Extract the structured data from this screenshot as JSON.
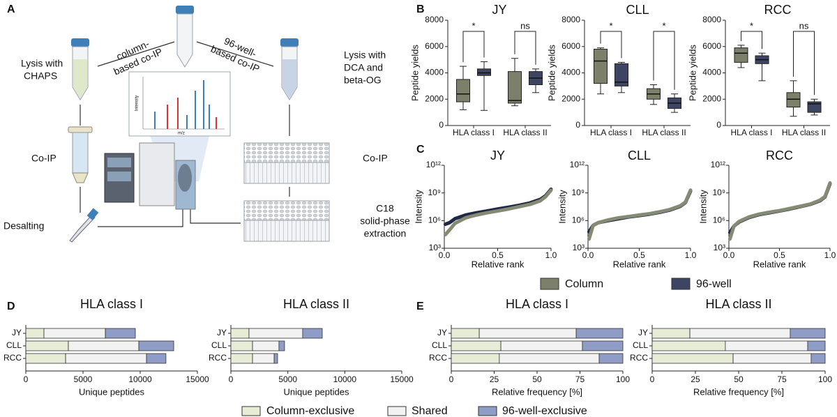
{
  "panel_labels": [
    "A",
    "B",
    "C",
    "D",
    "E"
  ],
  "diagram": {
    "lysis_left": [
      "Lysis with",
      "CHAPS"
    ],
    "column_coip": [
      "column-",
      "based co-IP"
    ],
    "well_coip": [
      "96-well-",
      "based co-IP"
    ],
    "lysis_right": [
      "Lysis with",
      "DCA and",
      "beta-OG"
    ],
    "coip_left": "Co-IP",
    "coip_right": "Co-IP",
    "desalting": "Desalting",
    "spe": [
      "C18",
      "solid-phase",
      "extraction"
    ],
    "spectrum": {
      "xlabel": "m/z",
      "ylabel": "Intensity"
    }
  },
  "chart_data": [
    {
      "type": "box",
      "title": "JY",
      "ylabel": "Peptide yields",
      "categories": [
        "HLA class I",
        "HLA class II"
      ],
      "ylim": [
        0,
        8000
      ],
      "yticks": [
        0,
        2000,
        4000,
        6000,
        8000
      ],
      "annotations": [
        "*",
        "ns"
      ],
      "series": [
        {
          "name": "Column",
          "color": "#7c806b",
          "values": [
            {
              "min": 1200,
              "q1": 1800,
              "median": 2400,
              "q3": 3500,
              "max": 4500
            },
            {
              "min": 1500,
              "q1": 1700,
              "median": 1900,
              "q3": 4100,
              "max": 5100
            }
          ]
        },
        {
          "name": "96-well",
          "color": "#3e4562",
          "values": [
            {
              "min": 1150,
              "q1": 3800,
              "median": 4000,
              "q3": 4300,
              "max": 4850
            },
            {
              "min": 2500,
              "q1": 3100,
              "median": 3600,
              "q3": 4100,
              "max": 4300
            }
          ]
        }
      ]
    },
    {
      "type": "box",
      "title": "CLL",
      "ylabel": "Peptide yields",
      "categories": [
        "HLA class I",
        "HLA class II"
      ],
      "ylim": [
        0,
        8000
      ],
      "yticks": [
        0,
        2000,
        4000,
        6000,
        8000
      ],
      "annotations": [
        "*",
        "*"
      ],
      "series": [
        {
          "name": "Column",
          "color": "#7c806b",
          "values": [
            {
              "min": 2400,
              "q1": 3200,
              "median": 4900,
              "q3": 5800,
              "max": 5900
            },
            {
              "min": 1600,
              "q1": 2000,
              "median": 2400,
              "q3": 2800,
              "max": 3100
            }
          ]
        },
        {
          "name": "96-well",
          "color": "#3e4562",
          "values": [
            {
              "min": 2500,
              "q1": 3000,
              "median": 3300,
              "q3": 4700,
              "max": 4800
            },
            {
              "min": 1000,
              "q1": 1300,
              "median": 1700,
              "q3": 2100,
              "max": 2400
            }
          ]
        }
      ]
    },
    {
      "type": "box",
      "title": "RCC",
      "ylabel": "Peptide yields",
      "categories": [
        "HLA class I",
        "HLA class II"
      ],
      "ylim": [
        0,
        8000
      ],
      "yticks": [
        0,
        2000,
        4000,
        6000,
        8000
      ],
      "annotations": [
        "*",
        "ns"
      ],
      "series": [
        {
          "name": "Column",
          "color": "#7c806b",
          "values": [
            {
              "min": 4400,
              "q1": 4800,
              "median": 5500,
              "q3": 5900,
              "max": 6100
            },
            {
              "min": 700,
              "q1": 1400,
              "median": 2000,
              "q3": 2500,
              "max": 3400
            }
          ]
        },
        {
          "name": "96-well",
          "color": "#3e4562",
          "values": [
            {
              "min": 3400,
              "q1": 4700,
              "median": 5000,
              "q3": 5300,
              "max": 5500
            },
            {
              "min": 800,
              "q1": 1000,
              "median": 1650,
              "q3": 1800,
              "max": 2000
            }
          ]
        }
      ]
    },
    {
      "type": "line",
      "title": "JY",
      "xlabel": "Relative rank",
      "ylabel": "Intensity",
      "log_y": true,
      "x": [
        0.01,
        0.05,
        0.1,
        0.2,
        0.3,
        0.4,
        0.5,
        0.6,
        0.7,
        0.8,
        0.9,
        0.95,
        1.0
      ],
      "xlim": [
        0,
        1
      ],
      "xticks": [
        {
          "value": 0,
          "label": "0.0"
        },
        0.5,
        {
          "value": 1,
          "label": "1.0"
        }
      ],
      "ylim": [
        1000,
        1000000000000
      ],
      "yticks": [
        {
          "value": 1000,
          "label": "10³"
        },
        {
          "value": 1000000,
          "label": "10⁶"
        },
        {
          "value": 1000000000,
          "label": "10⁹"
        },
        {
          "value": 1000000000000,
          "label": "10¹²"
        }
      ],
      "series": [
        {
          "name": "Column",
          "color": "#858a74",
          "values": [
            30000,
            100000,
            500000,
            2000000,
            4000000,
            7000000,
            11000000,
            18000000,
            32000000,
            56000000,
            140000000,
            400000000,
            2000000000
          ]
        },
        {
          "name": "96-well",
          "color": "#1f2845",
          "values": [
            400000,
            600000,
            1600000,
            4000000,
            7000000,
            11000000,
            18000000,
            28000000,
            45000000,
            80000000,
            200000000,
            500000000,
            2500000000
          ]
        }
      ]
    },
    {
      "type": "line",
      "title": "CLL",
      "xlabel": "Relative rank",
      "ylabel": "Intensity",
      "log_y": true,
      "x": [
        0.01,
        0.05,
        0.1,
        0.2,
        0.3,
        0.4,
        0.5,
        0.6,
        0.7,
        0.8,
        0.9,
        0.95,
        1.0
      ],
      "xlim": [
        0,
        1
      ],
      "xticks": [
        {
          "value": 0,
          "label": "0.0"
        },
        0.5,
        {
          "value": 1,
          "label": "1.0"
        }
      ],
      "ylim": [
        1000,
        1000000000000
      ],
      "yticks": [
        {
          "value": 1000,
          "label": "10³"
        },
        {
          "value": 1000000,
          "label": "10⁶"
        },
        {
          "value": 1000000000,
          "label": "10⁹"
        },
        {
          "value": 1000000000000,
          "label": "10¹²"
        }
      ],
      "series": [
        {
          "name": "Column",
          "color": "#858a74",
          "values": [
            10000,
            300000,
            600000,
            1200000,
            2000000,
            2800000,
            4000000,
            5600000,
            9000000,
            16000000,
            40000000,
            100000000,
            2000000000
          ]
        },
        {
          "name": "96-well",
          "color": "#1f2845",
          "values": [
            60000,
            300000,
            600000,
            1000000,
            1600000,
            2500000,
            3500000,
            5000000,
            8000000,
            14000000,
            35000000,
            90000000,
            1600000000
          ]
        }
      ]
    },
    {
      "type": "line",
      "title": "RCC",
      "xlabel": "Relative rank",
      "ylabel": "Intensity",
      "log_y": true,
      "x": [
        0.01,
        0.05,
        0.1,
        0.2,
        0.3,
        0.4,
        0.5,
        0.6,
        0.7,
        0.8,
        0.9,
        0.95,
        1.0
      ],
      "xlim": [
        0,
        1
      ],
      "xticks": [
        {
          "value": 0,
          "label": "0.0"
        },
        0.5,
        {
          "value": 1,
          "label": "1.0"
        }
      ],
      "ylim": [
        1000,
        1000000000000
      ],
      "yticks": [
        {
          "value": 1000,
          "label": "10³"
        },
        {
          "value": 1000000,
          "label": "10⁶"
        },
        {
          "value": 1000000000,
          "label": "10⁹"
        },
        {
          "value": 1000000000000,
          "label": "10¹²"
        }
      ],
      "series": [
        {
          "name": "Column",
          "color": "#858a74",
          "values": [
            10000,
            250000,
            800000,
            2500000,
            5000000,
            8000000,
            12000000,
            20000000,
            35000000,
            60000000,
            160000000,
            400000000,
            12000000000
          ]
        },
        {
          "name": "96-well",
          "color": "#1f2845",
          "values": [
            50000,
            250000,
            700000,
            2200000,
            4500000,
            7000000,
            11000000,
            18000000,
            32000000,
            56000000,
            140000000,
            360000000,
            10000000000
          ]
        }
      ]
    },
    {
      "type": "stacked_bar_h",
      "title": "HLA class I",
      "xlabel": "Unique peptides",
      "categories": [
        "JY",
        "CLL",
        "RCC"
      ],
      "xlim": [
        0,
        15000
      ],
      "xticks": [
        0,
        5000,
        10000,
        15000
      ],
      "series": [
        {
          "name": "Column-exclusive",
          "color": "#e6ecd6",
          "values": [
            1585,
            3720,
            3480
          ]
        },
        {
          "name": "Shared",
          "color": "#f2f2f2",
          "values": [
            5370,
            6160,
            7070
          ]
        },
        {
          "name": "96-well-exclusive",
          "color": "#8f9cc6",
          "values": [
            2620,
            3050,
            1700
          ]
        }
      ]
    },
    {
      "type": "stacked_bar_h",
      "title": "HLA class II",
      "xlabel": "Unique peptides",
      "categories": [
        "JY",
        "CLL",
        "RCC"
      ],
      "xlim": [
        0,
        15000
      ],
      "xticks": [
        0,
        5000,
        10000,
        15000
      ],
      "series": [
        {
          "name": "Column-exclusive",
          "color": "#e6ecd6",
          "values": [
            1590,
            1900,
            1900
          ]
        },
        {
          "name": "Shared",
          "color": "#f2f2f2",
          "values": [
            4710,
            2320,
            1900
          ]
        },
        {
          "name": "96-well-exclusive",
          "color": "#8f9cc6",
          "values": [
            1720,
            490,
            300
          ]
        }
      ]
    },
    {
      "type": "stacked_bar_h",
      "title": "HLA class I",
      "xlabel": "Relative frequency [%]",
      "categories": [
        "JY",
        "CLL",
        "RCC"
      ],
      "xlim": [
        0,
        100
      ],
      "xticks": [
        0,
        25,
        50,
        75,
        100
      ],
      "series": [
        {
          "name": "Column-exclusive",
          "color": "#e6ecd6",
          "values": [
            16.3,
            28.9,
            28
          ]
        },
        {
          "name": "Shared",
          "color": "#f2f2f2",
          "values": [
            56.5,
            47.5,
            58.2
          ]
        },
        {
          "name": "96-well-exclusive",
          "color": "#8f9cc6",
          "values": [
            27.2,
            23.6,
            13.8
          ]
        }
      ]
    },
    {
      "type": "stacked_bar_h",
      "title": "HLA class II",
      "xlabel": "Relative frequency [%]",
      "categories": [
        "JY",
        "CLL",
        "RCC"
      ],
      "xlim": [
        0,
        100
      ],
      "xticks": [
        0,
        25,
        50,
        75,
        100
      ],
      "series": [
        {
          "name": "Column-exclusive",
          "color": "#e6ecd6",
          "values": [
            21.8,
            42.3,
            46.8
          ]
        },
        {
          "name": "Shared",
          "color": "#f2f2f2",
          "values": [
            58,
            47.6,
            45.1
          ]
        },
        {
          "name": "96-well-exclusive",
          "color": "#8f9cc6",
          "values": [
            20.2,
            10.1,
            8.1
          ]
        }
      ]
    }
  ]
}
